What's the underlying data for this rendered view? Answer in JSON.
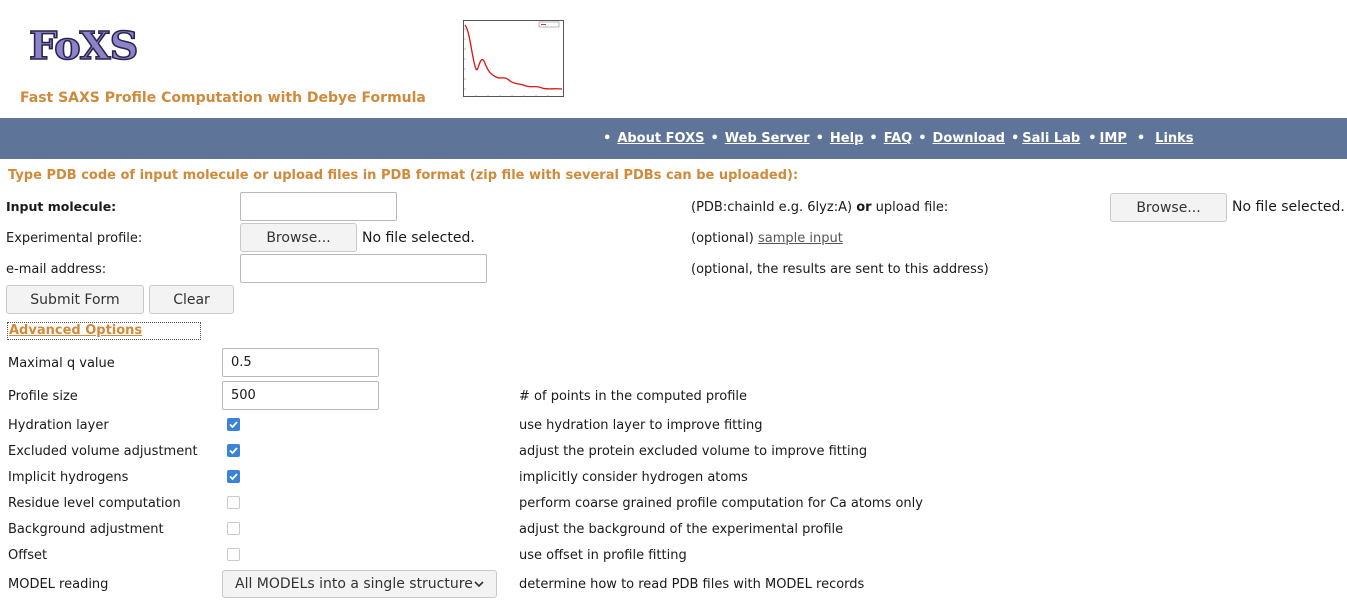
{
  "header": {
    "logo_text": "FoXS",
    "tagline": "Fast SAXS Profile Computation with Debye Formula"
  },
  "nav": {
    "separator": "•",
    "items": [
      "About FOXS",
      "Web Server",
      "Help",
      "FAQ",
      "Download",
      "Sali Lab",
      "IMP",
      "Links"
    ]
  },
  "instruction": "Type PDB code of input molecule or upload files in PDB format (zip file with several PDBs can be uploaded):",
  "form": {
    "input_molecule_label": "Input molecule:",
    "input_molecule_value": "",
    "pdb_hint_prefix": "(PDB:chainId e.g. 6lyz:A)",
    "pdb_hint_or": "or",
    "pdb_hint_suffix": "upload file:",
    "browse_label": "Browse...",
    "no_file": "No file selected.",
    "experimental_label": "Experimental profile:",
    "optional_prefix": "(optional)",
    "sample_input_link": "sample input",
    "email_label": "e-mail address:",
    "email_value": "",
    "email_hint": "(optional, the results are sent to this address)",
    "submit_label": "Submit Form",
    "clear_label": "Clear"
  },
  "advanced": {
    "toggle_label": "Advanced Options",
    "maxq_label": "Maximal q value",
    "maxq_value": "0.5",
    "profile_size_label": "Profile size",
    "profile_size_value": "500",
    "profile_size_desc": "# of points in the computed profile",
    "options": [
      {
        "label": "Hydration layer",
        "checked": true,
        "desc": "use hydration layer to improve fitting"
      },
      {
        "label": "Excluded volume adjustment",
        "checked": true,
        "desc": "adjust the protein excluded volume to improve fitting"
      },
      {
        "label": "Implicit hydrogens",
        "checked": true,
        "desc": "implicitly consider hydrogen atoms"
      },
      {
        "label": "Residue level computation",
        "checked": false,
        "desc": "perform coarse grained profile computation for Ca atoms only"
      },
      {
        "label": "Background adjustment",
        "checked": false,
        "desc": "adjust the background of the experimental profile"
      },
      {
        "label": "Offset",
        "checked": false,
        "desc": "use offset in profile fitting"
      }
    ],
    "model_label": "MODEL reading",
    "model_value": "All MODELs into a single structure",
    "model_desc": "determine how to read PDB files with MODEL records"
  },
  "colors": {
    "accent_orange": "#d08a3a",
    "nav_bg": "#5e7498",
    "checkbox_blue": "#3b83d6"
  }
}
